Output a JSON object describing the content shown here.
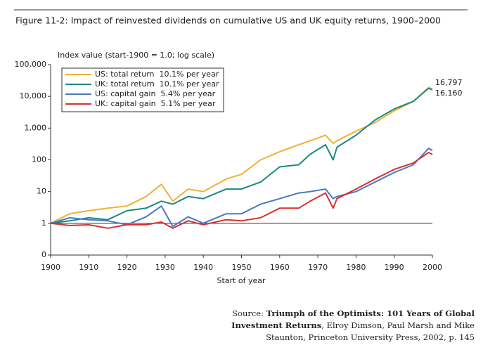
{
  "chart_data": {
    "type": "line",
    "title": "Figure 11-2: Impact of reinvested dividends on cumulative US and UK equity returns, 1900–2000",
    "y_label": "Index value (start-1900 = 1.0; log scale)",
    "x_label": "Start of year",
    "log_y": true,
    "legend": "top-left",
    "x": [
      1900,
      1905,
      1910,
      1915,
      1920,
      1925,
      1929,
      1932,
      1936,
      1940,
      1946,
      1950,
      1955,
      1960,
      1965,
      1968,
      1972,
      1974,
      1975,
      1980,
      1985,
      1990,
      1995,
      1999,
      2000
    ],
    "series": [
      {
        "name": "US: total return  10.1% per year",
        "color": "#f2b134",
        "values": [
          1,
          2,
          2.5,
          3,
          3.5,
          7,
          17,
          5,
          12,
          10,
          25,
          35,
          100,
          180,
          300,
          400,
          600,
          330,
          400,
          800,
          1500,
          3500,
          7000,
          19000,
          16797
        ],
        "value_labels": [
          null,
          null,
          null,
          null,
          null,
          null,
          null,
          null,
          null,
          null,
          null,
          null,
          null,
          null,
          null,
          null,
          null,
          null,
          null,
          null,
          null,
          null,
          null,
          null,
          "16,797"
        ]
      },
      {
        "name": "UK: total return  10.1% per year",
        "color": "#1a8a7e",
        "values": [
          1,
          1.2,
          1.5,
          1.3,
          2.5,
          3,
          5,
          4,
          7,
          6,
          12,
          12,
          20,
          60,
          70,
          150,
          300,
          100,
          250,
          600,
          1800,
          4000,
          7000,
          18000,
          16160
        ],
        "value_labels": [
          null,
          null,
          null,
          null,
          null,
          null,
          null,
          null,
          null,
          null,
          null,
          null,
          null,
          null,
          null,
          null,
          null,
          null,
          null,
          null,
          null,
          null,
          null,
          null,
          "16,160"
        ]
      },
      {
        "name": "US: capital gain  5.4% per year",
        "color": "#4a78c0",
        "values": [
          1,
          1.5,
          1.3,
          1.2,
          0.9,
          1.6,
          3.5,
          0.8,
          1.6,
          1,
          2,
          2,
          4,
          6,
          9,
          10,
          12,
          6,
          7,
          10,
          20,
          40,
          70,
          230,
          198
        ]
      },
      {
        "name": "UK: capital gain  5.1% per year",
        "color": "#d7312e",
        "values": [
          1,
          0.85,
          0.9,
          0.7,
          0.9,
          0.9,
          1.1,
          0.7,
          1.2,
          0.9,
          1.3,
          1.2,
          1.5,
          3,
          3,
          5,
          9,
          3,
          6,
          12,
          25,
          50,
          80,
          170,
          149
        ]
      }
    ],
    "xlim": [
      1900,
      2000
    ],
    "xticks": [
      1900,
      1910,
      1920,
      1930,
      1940,
      1950,
      1960,
      1970,
      1980,
      1990,
      2000
    ],
    "ylim": [
      0.1,
      100000
    ],
    "yticks": [
      {
        "value": 0.1,
        "label": "0"
      },
      1,
      10,
      100,
      {
        "value": 1000,
        "label": "1,000"
      },
      {
        "value": 10000,
        "label": "10,000"
      },
      {
        "value": 100000,
        "label": "100,000"
      }
    ],
    "reference_line": 1,
    "source": {
      "prefix": "Source: ",
      "book": "Triumph of the Optimists: 101 Years of Global Investment Returns",
      "rest": ", Elroy Dimson, Paul Marsh and Mike Staunton, Princeton University Press, 2002, p. 145"
    }
  }
}
